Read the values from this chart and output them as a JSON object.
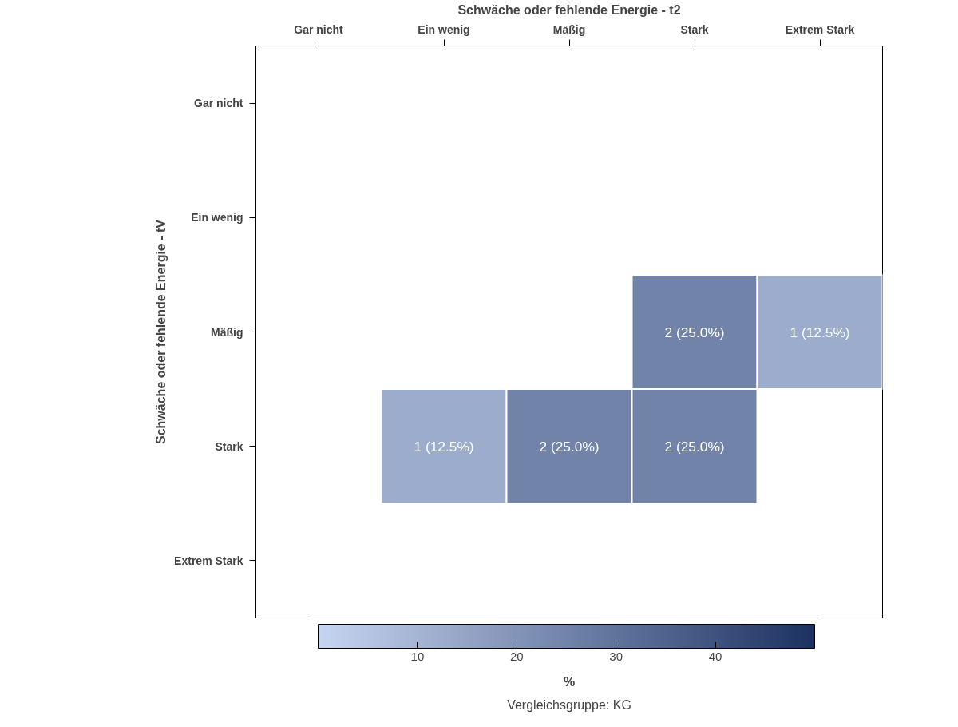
{
  "chart_data": {
    "type": "heatmap",
    "xlabel": "Schwäche oder fehlende Energie - t2",
    "ylabel": "Schwäche oder fehlende Energie - tV",
    "clabel": "%",
    "categories": [
      "Gar nicht",
      "Ein wenig",
      "Mäßig",
      "Stark",
      "Extrem Stark"
    ],
    "y_categories": [
      "Gar nicht",
      "Ein wenig",
      "Mäßig",
      "Stark",
      "Extrem Stark"
    ],
    "cells": [
      [
        null,
        null,
        null,
        null,
        null
      ],
      [
        null,
        null,
        null,
        null,
        null
      ],
      [
        null,
        null,
        null,
        25.0,
        12.5
      ],
      [
        null,
        12.5,
        25.0,
        25.0,
        null
      ],
      [
        null,
        null,
        null,
        null,
        null
      ]
    ],
    "cell_labels": [
      [
        null,
        null,
        null,
        null,
        null
      ],
      [
        null,
        null,
        null,
        null,
        null
      ],
      [
        null,
        null,
        null,
        "2 (25.0%)",
        "1 (12.5%)"
      ],
      [
        null,
        "1 (12.5%)",
        "2 (25.0%)",
        "2 (25.0%)",
        null
      ],
      [
        null,
        null,
        null,
        null,
        null
      ]
    ],
    "clim": [
      0,
      50
    ],
    "cticks": [
      10,
      20,
      30,
      40
    ],
    "grid": false,
    "annotations": [
      "Vergleichsgruppe: KG"
    ]
  }
}
